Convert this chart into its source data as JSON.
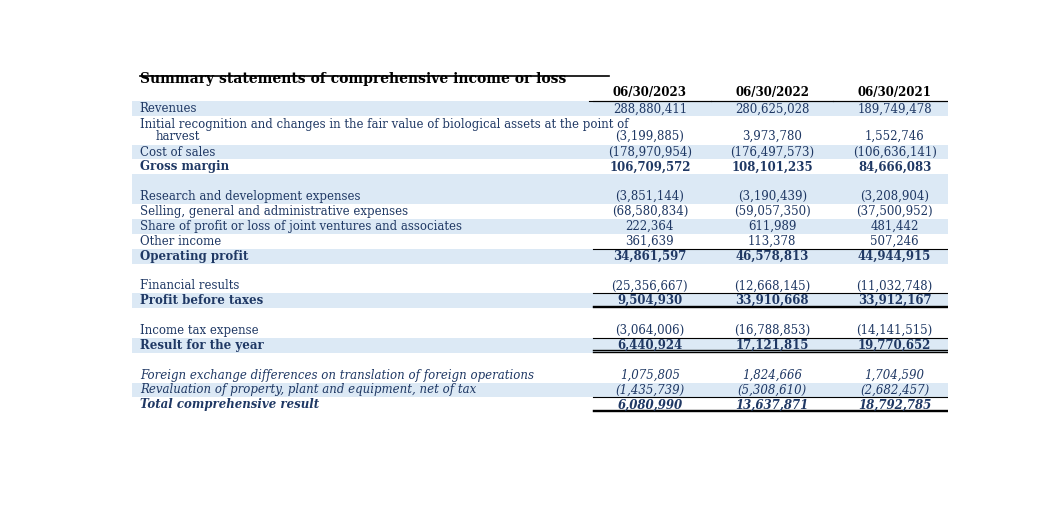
{
  "title": "Summary statements of comprehensive income or loss",
  "columns": [
    "06/30/2023",
    "06/30/2022",
    "06/30/2021"
  ],
  "rows": [
    {
      "label": "Revenues",
      "label2": "",
      "values": [
        "288,880,411",
        "280,625,028",
        "189,749,478"
      ],
      "style": "normal",
      "bg": "#dce9f5",
      "underline_above": true,
      "double_underline_below": false
    },
    {
      "label": "Initial recognition and changes in the fair value of biological assets at the point of",
      "label2": "    harvest",
      "values": [
        "(3,199,885)",
        "3,973,780",
        "1,552,746"
      ],
      "style": "normal",
      "bg": "#ffffff",
      "underline_above": false,
      "double_underline_below": false
    },
    {
      "label": "Cost of sales",
      "label2": "",
      "values": [
        "(178,970,954)",
        "(176,497,573)",
        "(106,636,141)"
      ],
      "style": "normal",
      "bg": "#dce9f5",
      "underline_above": false,
      "double_underline_below": false
    },
    {
      "label": "Gross margin",
      "label2": "",
      "values": [
        "106,709,572",
        "108,101,235",
        "84,666,083"
      ],
      "style": "bold",
      "bg": "#ffffff",
      "underline_above": false,
      "double_underline_below": false
    },
    {
      "label": "",
      "label2": "",
      "values": [
        "",
        "",
        ""
      ],
      "style": "normal",
      "bg": "#dce9f5",
      "underline_above": false,
      "double_underline_below": false
    },
    {
      "label": "Research and development expenses",
      "label2": "",
      "values": [
        "(3,851,144)",
        "(3,190,439)",
        "(3,208,904)"
      ],
      "style": "normal",
      "bg": "#dce9f5",
      "underline_above": false,
      "double_underline_below": false
    },
    {
      "label": "Selling, general and administrative expenses",
      "label2": "",
      "values": [
        "(68,580,834)",
        "(59,057,350)",
        "(37,500,952)"
      ],
      "style": "normal",
      "bg": "#ffffff",
      "underline_above": false,
      "double_underline_below": false
    },
    {
      "label": "Share of profit or loss of joint ventures and associates",
      "label2": "",
      "values": [
        "222,364",
        "611,989",
        "481,442"
      ],
      "style": "normal",
      "bg": "#dce9f5",
      "underline_above": false,
      "double_underline_below": false
    },
    {
      "label": "Other income",
      "label2": "",
      "values": [
        "361,639",
        "113,378",
        "507,246"
      ],
      "style": "normal",
      "bg": "#ffffff",
      "underline_above": false,
      "double_underline_below": false
    },
    {
      "label": "Operating profit",
      "label2": "",
      "values": [
        "34,861,597",
        "46,578,813",
        "44,944,915"
      ],
      "style": "bold",
      "bg": "#dce9f5",
      "underline_above": true,
      "double_underline_below": false
    },
    {
      "label": "",
      "label2": "",
      "values": [
        "",
        "",
        ""
      ],
      "style": "normal",
      "bg": "#ffffff",
      "underline_above": false,
      "double_underline_below": false
    },
    {
      "label": "Financial results",
      "label2": "",
      "values": [
        "(25,356,667)",
        "(12,668,145)",
        "(11,032,748)"
      ],
      "style": "normal",
      "bg": "#ffffff",
      "underline_above": false,
      "double_underline_below": false
    },
    {
      "label": "Profit before taxes",
      "label2": "",
      "values": [
        "9,504,930",
        "33,910,668",
        "33,912,167"
      ],
      "style": "bold",
      "bg": "#dce9f5",
      "underline_above": true,
      "double_underline_below": true
    },
    {
      "label": "",
      "label2": "",
      "values": [
        "",
        "",
        ""
      ],
      "style": "normal",
      "bg": "#ffffff",
      "underline_above": false,
      "double_underline_below": false
    },
    {
      "label": "Income tax expense",
      "label2": "",
      "values": [
        "(3,064,006)",
        "(16,788,853)",
        "(14,141,515)"
      ],
      "style": "normal",
      "bg": "#ffffff",
      "underline_above": false,
      "double_underline_below": false
    },
    {
      "label": "Result for the year",
      "label2": "",
      "values": [
        "6,440,924",
        "17,121,815",
        "19,770,652"
      ],
      "style": "bold",
      "bg": "#dce9f5",
      "underline_above": true,
      "double_underline_below": true
    },
    {
      "label": "",
      "label2": "",
      "values": [
        "",
        "",
        ""
      ],
      "style": "normal",
      "bg": "#ffffff",
      "underline_above": false,
      "double_underline_below": false
    },
    {
      "label": "Foreign exchange differences on translation of foreign operations",
      "label2": "",
      "values": [
        "1,075,805",
        "1,824,666",
        "1,704,590"
      ],
      "style": "italic",
      "bg": "#ffffff",
      "underline_above": false,
      "double_underline_below": false
    },
    {
      "label": "Revaluation of property, plant and equipment, net of tax",
      "label2": "",
      "values": [
        "(1,435,739)",
        "(5,308,610)",
        "(2,682,457)"
      ],
      "style": "italic",
      "bg": "#dce9f5",
      "underline_above": false,
      "double_underline_below": false
    },
    {
      "label": "Total comprehensive result",
      "label2": "",
      "values": [
        "6,080,990",
        "13,637,871",
        "18,792,785"
      ],
      "style": "bold_italic",
      "bg": "#ffffff",
      "underline_above": true,
      "double_underline_below": true
    }
  ],
  "normal_color": "#1f3864",
  "font_size": 8.5,
  "header_font_size": 8.5
}
